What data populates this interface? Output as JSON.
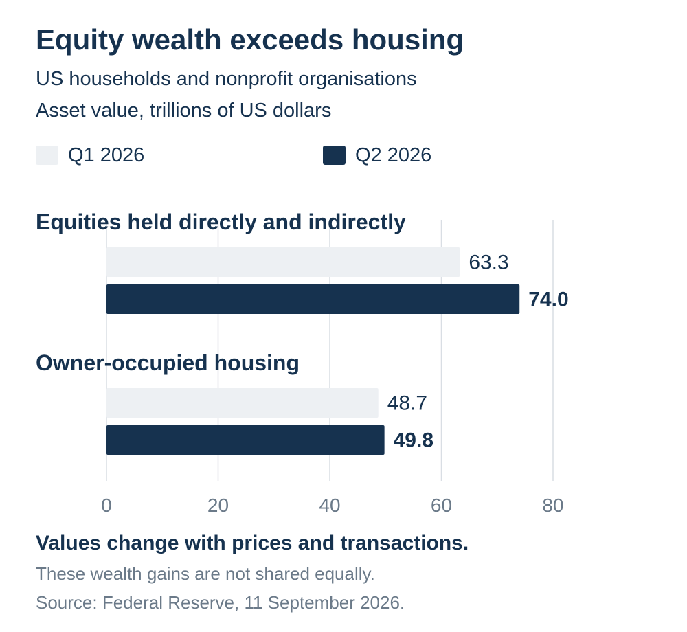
{
  "header": {
    "title": "Equity wealth exceeds housing",
    "subtitle_1": "US households and nonprofit organisations",
    "subtitle_2": "Asset value, trillions of US dollars"
  },
  "legend": [
    {
      "label": "Q1 2026",
      "color": "#edf0f3"
    },
    {
      "label": "Q2 2026",
      "color": "#16324f"
    }
  ],
  "footer": {
    "note": "Values change with prices and transactions.",
    "text_1": "These wealth gains are not shared equally.",
    "text_2": "Source: Federal Reserve, 11 September 2026."
  },
  "chart_data": {
    "type": "bar",
    "orientation": "horizontal",
    "categories": [
      "Equities held directly and indirectly",
      "Owner-occupied housing"
    ],
    "series": [
      {
        "name": "Q1 2026",
        "values": [
          63.3,
          48.7
        ],
        "labels": [
          "63.3",
          "48.7"
        ],
        "color": "#edf0f3",
        "label_color": "#16324f",
        "label_bold": false
      },
      {
        "name": "Q2 2026",
        "values": [
          74.0,
          49.8
        ],
        "labels": [
          "74.0",
          "49.8"
        ],
        "color": "#16324f",
        "label_color": "#16324f",
        "label_bold": true
      }
    ],
    "xlim": [
      0,
      80
    ],
    "xticks": [
      0,
      20,
      40,
      60,
      80
    ],
    "tick_labels": [
      "0",
      "20",
      "40",
      "60",
      "80"
    ],
    "grid": true
  }
}
